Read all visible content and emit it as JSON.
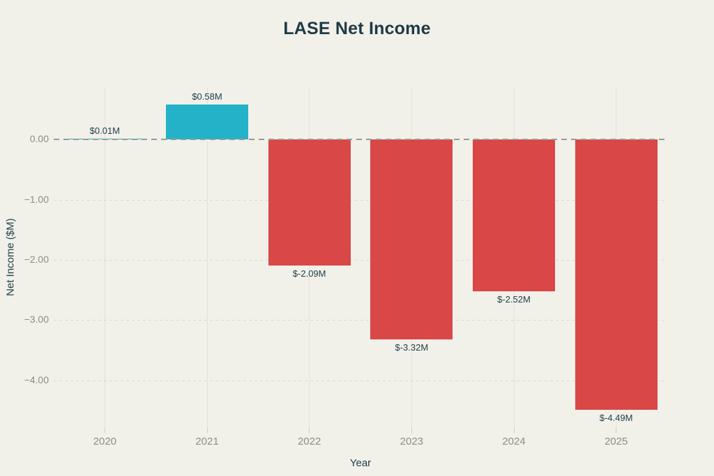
{
  "chart_data": {
    "type": "bar",
    "title": "LASE Net Income",
    "xlabel": "Year",
    "ylabel": "Net Income ($M)",
    "categories": [
      "2020",
      "2021",
      "2022",
      "2023",
      "2024",
      "2025"
    ],
    "values": [
      0.01,
      0.58,
      -2.09,
      -3.32,
      -2.52,
      -4.49
    ],
    "bar_labels": [
      "$0.01M",
      "$0.58M",
      "$-2.09M",
      "$-3.32M",
      "$-2.52M",
      "$-4.49M"
    ],
    "yticks": [
      0,
      -1,
      -2,
      -3,
      -4
    ],
    "ytick_labels": [
      "0.00",
      "−1.00",
      "−2.00",
      "−3.00",
      "−4.00"
    ],
    "ylim": [
      -4.8,
      0.86
    ],
    "grid": true,
    "zero_line": "dashed",
    "legend": "none",
    "colors": {
      "positive_bar": "#23b2c8",
      "negative_bar": "#d94747",
      "background": "#f1f0e9",
      "title_text": "#1e3a44",
      "axis_title_text": "#22414c",
      "bar_label_text": "#22414c",
      "tick_label_text": "#8d8d89",
      "gridline": "#e3e1d9",
      "zero_line": "#9b9a94"
    }
  }
}
